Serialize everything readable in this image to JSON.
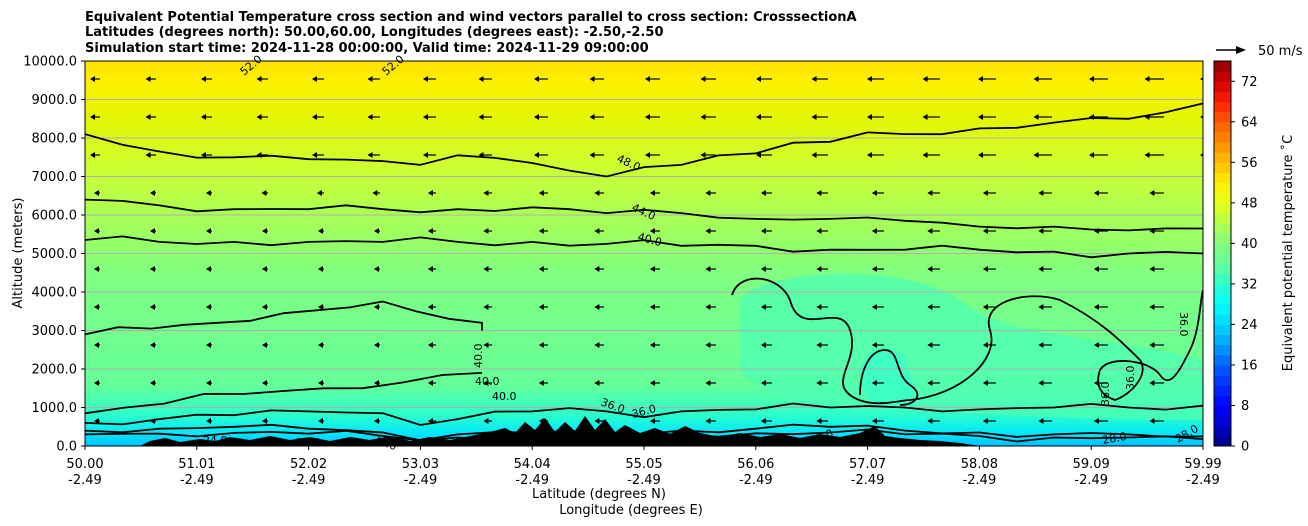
{
  "chart_data": {
    "type": "heatmap",
    "title_lines": [
      "Equivalent Potential Temperature cross section and wind vectors parallel to cross section: CrosssectionA",
      "Latitudes (degrees north): 50.00,60.00, Longitudes (degrees east): -2.50,-2.50",
      "Simulation start time: 2024-11-28 00:00:00, Valid time: 2024-11-29 09:00:00"
    ],
    "xlabel": "Latitude (degrees N)",
    "xlabel2": "Longitude (degrees E)",
    "ylabel": "Altitude (meters)",
    "ylim": [
      0,
      10000
    ],
    "xlim": [
      50.0,
      59.99
    ],
    "yticks": [
      "0.0",
      "1000.0",
      "2000.0",
      "3000.0",
      "4000.0",
      "5000.0",
      "6000.0",
      "7000.0",
      "8000.0",
      "9000.0",
      "10000.0"
    ],
    "xticks": [
      {
        "lat": "50.00",
        "lon": "-2.49"
      },
      {
        "lat": "51.01",
        "lon": "-2.49"
      },
      {
        "lat": "52.02",
        "lon": "-2.49"
      },
      {
        "lat": "53.03",
        "lon": "-2.49"
      },
      {
        "lat": "54.04",
        "lon": "-2.49"
      },
      {
        "lat": "55.05",
        "lon": "-2.49"
      },
      {
        "lat": "56.06",
        "lon": "-2.49"
      },
      {
        "lat": "57.07",
        "lon": "-2.49"
      },
      {
        "lat": "58.08",
        "lon": "-2.49"
      },
      {
        "lat": "59.09",
        "lon": "-2.49"
      },
      {
        "lat": "59.99",
        "lon": "-2.49"
      }
    ],
    "grid": "horizontal",
    "colorbar": {
      "label": "Equivalent potential temperature ˚C",
      "min": 0,
      "max": 76,
      "ticks": [
        0,
        8,
        16,
        24,
        32,
        40,
        48,
        56,
        64,
        72
      ]
    },
    "quiver_key": {
      "label": "50 m/s",
      "value": 50
    },
    "contour_labels": [
      "52.0",
      "52.0",
      "48.0",
      "44.0",
      "40.0",
      "40.0",
      "40.0",
      "40.0",
      "36.0",
      "36.0",
      "36.0",
      "36.0",
      "36.0",
      "28.0",
      "28.0",
      "24.0",
      "24.0",
      "20.0",
      "20.0"
    ],
    "contours": [
      {
        "level": 48,
        "z": [
          8100,
          7900,
          7650,
          7550,
          7500,
          7450,
          7450,
          7400,
          7400,
          7400,
          7550,
          7500,
          7350,
          7050,
          7000,
          7250,
          7300,
          7650,
          7600,
          7850,
          7900,
          8050,
          8100,
          8150,
          8250,
          8350,
          8400,
          8450,
          8500,
          8600,
          8900
        ]
      },
      {
        "level": 44,
        "z": [
          6400,
          6350,
          6250,
          6200,
          6150,
          6150,
          6150,
          6150,
          6150,
          6100,
          6150,
          6200,
          6200,
          6100,
          6050,
          6050,
          6050,
          6000,
          5900,
          5950,
          5900,
          5850,
          5850,
          5750,
          5700,
          5750,
          5700,
          5650,
          5600,
          5550,
          5650
        ]
      },
      {
        "level": 40,
        "z": [
          5350,
          5350,
          5300,
          5300,
          5300,
          5300,
          5300,
          5250,
          5300,
          5350,
          5300,
          5300,
          5300,
          5250,
          5250,
          5250,
          5200,
          5200,
          5200,
          5150,
          5100,
          5100,
          5100,
          5100,
          5100,
          5050,
          5050,
          5000,
          5000,
          5000,
          5000
        ]
      },
      {
        "level": 40,
        "z": [
          2900,
          3000,
          3050,
          3100,
          3200,
          3350,
          3450,
          3550,
          3600,
          3650,
          3500,
          3300,
          3200
        ]
      },
      {
        "level": 40,
        "z": [
          850,
          1000,
          1100,
          1250,
          1350,
          1450,
          1500,
          1600,
          1650,
          1800,
          1900
        ]
      },
      {
        "level": 36,
        "z": [
          600,
          650,
          700,
          750,
          800,
          850,
          900,
          950,
          850,
          600,
          700,
          800,
          900,
          950,
          900,
          850,
          900,
          950,
          950,
          1000,
          1000,
          1050,
          1000,
          1000,
          950,
          950,
          1000,
          1000,
          1000,
          1000,
          1050
        ]
      },
      {
        "level": 28,
        "z": [
          400,
          450,
          450,
          500,
          500,
          450,
          450,
          400,
          350,
          250,
          300,
          350,
          350,
          300,
          300,
          350,
          400,
          450,
          450,
          500,
          500,
          450,
          400,
          400,
          350,
          300,
          300,
          250,
          300,
          200,
          250
        ]
      },
      {
        "level": 24,
        "z": [
          300,
          330,
          320,
          350,
          340,
          330,
          320,
          300,
          260,
          200,
          220,
          250,
          250,
          220,
          220,
          260,
          290,
          330,
          330,
          350,
          350,
          330,
          300,
          300,
          260,
          220,
          220,
          200,
          220,
          150,
          180
        ]
      }
    ]
  }
}
